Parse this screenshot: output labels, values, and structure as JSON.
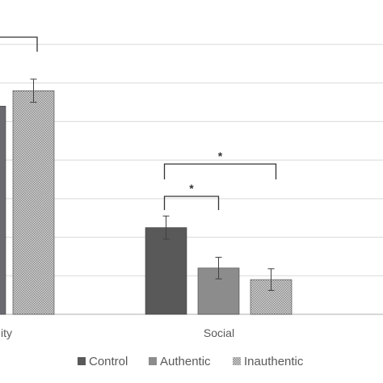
{
  "chart_data": {
    "type": "bar",
    "categories": [
      "ity",
      "Social"
    ],
    "series": [
      {
        "name": "Control",
        "values": [
          5.4,
          2.25
        ],
        "errors": [
          null,
          0.3
        ],
        "color": "#595959",
        "pattern": "solid"
      },
      {
        "name": "Authentic",
        "values": [
          null,
          1.2
        ],
        "errors": [
          null,
          0.28
        ],
        "color": "#8c8c8c",
        "pattern": "solid"
      },
      {
        "name": "Inauthentic",
        "values": [
          5.8,
          0.9
        ],
        "errors": [
          0.3,
          0.28
        ],
        "color": "#c8c8c8",
        "pattern": "checker"
      }
    ],
    "partial_first_group": {
      "visible_bar_value": 5.4,
      "visible_bar_color": "#6a6a70"
    },
    "ylim": [
      0,
      7
    ],
    "gridlines": [
      1,
      2,
      3,
      4,
      5,
      6,
      7
    ],
    "grid": true,
    "legend_position": "bottom",
    "significance": [
      {
        "label": "*",
        "group": "Social",
        "from": "Control",
        "to": "Authentic"
      },
      {
        "label": "*",
        "group": "Social",
        "from": "Control",
        "to": "Inauthentic"
      }
    ],
    "title": "",
    "xlabel": "",
    "ylabel": ""
  }
}
